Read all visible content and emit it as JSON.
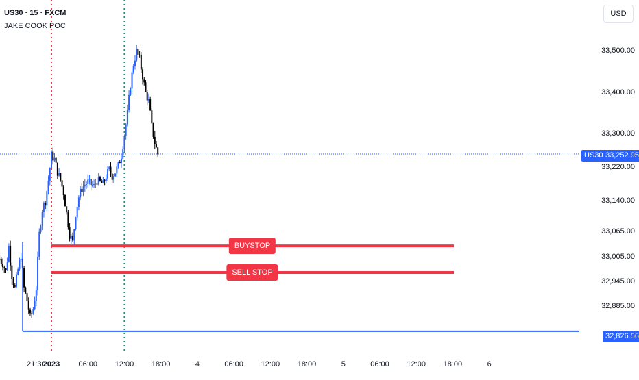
{
  "header": {
    "symbol_line": "US30 · 15 · FXCM",
    "indicator_name": "JAKE COOK POC"
  },
  "currency_label": "USD",
  "price_axis": {
    "labels": [
      "33,500.00",
      "33,400.00",
      "33,300.00",
      "33,220.00",
      "33,140.00",
      "33,065.00",
      "33,005.00",
      "32,945.00",
      "32,885.00"
    ]
  },
  "current_price": {
    "symbol_tag": "US30",
    "value_label": "33,252.95",
    "value": 33252.95,
    "color": "#2962ff"
  },
  "poc_level": {
    "value_label": "32,826.56",
    "value": 32826.56,
    "color": "#2962ff"
  },
  "order_lines": [
    {
      "label": "BUYSTOP",
      "price": 33032,
      "color": "#f23645"
    },
    {
      "label": "SELL STOP",
      "price": 32968,
      "color": "#f23645"
    }
  ],
  "session_markers": [
    {
      "time_hours": 0,
      "color": "#f23645"
    },
    {
      "time_hours": 12,
      "color": "#089981"
    }
  ],
  "time_axis": {
    "labels": [
      {
        "text": "21:30",
        "hours": -2.5,
        "bold": false
      },
      {
        "text": "2023",
        "hours": 0,
        "bold": true
      },
      {
        "text": "06:00",
        "hours": 6,
        "bold": false
      },
      {
        "text": "12:00",
        "hours": 12,
        "bold": false
      },
      {
        "text": "18:00",
        "hours": 18,
        "bold": false
      },
      {
        "text": "4",
        "hours": 24,
        "bold": false
      },
      {
        "text": "06:00",
        "hours": 30,
        "bold": false
      },
      {
        "text": "12:00",
        "hours": 36,
        "bold": false
      },
      {
        "text": "18:00",
        "hours": 42,
        "bold": false
      },
      {
        "text": "5",
        "hours": 48,
        "bold": false
      },
      {
        "text": "06:00",
        "hours": 54,
        "bold": false
      },
      {
        "text": "12:00",
        "hours": 60,
        "bold": false
      },
      {
        "text": "18:00",
        "hours": 66,
        "bold": false
      },
      {
        "text": "6",
        "hours": 72,
        "bold": false
      }
    ]
  },
  "chart_data": {
    "type": "candlestick",
    "interval_minutes": 15,
    "up_color": "#2962ff",
    "down_color": "#000000",
    "close_path": [
      [
        -8.5,
        33000
      ],
      [
        -8.0,
        32990
      ],
      [
        -7.5,
        32970
      ],
      [
        -7.0,
        33030
      ],
      [
        -6.5,
        32960
      ],
      [
        -6.0,
        32930
      ],
      [
        -5.5,
        32975
      ],
      [
        -5.0,
        33010
      ],
      [
        -4.5,
        32930
      ],
      [
        -4.0,
        32900
      ],
      [
        -3.5,
        32860
      ],
      [
        -3.0,
        32880
      ],
      [
        -2.5,
        32930
      ],
      [
        -2.0,
        33060
      ],
      [
        -1.5,
        33120
      ],
      [
        -1.0,
        33140
      ],
      [
        -0.5,
        33190
      ],
      [
        0.0,
        33250
      ],
      [
        0.5,
        33240
      ],
      [
        1.0,
        33210
      ],
      [
        1.5,
        33190
      ],
      [
        2.0,
        33160
      ],
      [
        2.5,
        33110
      ],
      [
        3.0,
        33060
      ],
      [
        3.5,
        33040
      ],
      [
        4.0,
        33110
      ],
      [
        4.5,
        33150
      ],
      [
        5.0,
        33170
      ],
      [
        5.5,
        33180
      ],
      [
        6.0,
        33185
      ],
      [
        6.5,
        33180
      ],
      [
        7.0,
        33175
      ],
      [
        7.5,
        33190
      ],
      [
        8.0,
        33185
      ],
      [
        8.5,
        33180
      ],
      [
        9.0,
        33200
      ],
      [
        9.5,
        33215
      ],
      [
        10.0,
        33200
      ],
      [
        10.5,
        33210
      ],
      [
        11.0,
        33225
      ],
      [
        11.5,
        33250
      ],
      [
        12.0,
        33300
      ],
      [
        12.5,
        33350
      ],
      [
        13.0,
        33420
      ],
      [
        13.5,
        33470
      ],
      [
        14.0,
        33500
      ],
      [
        14.5,
        33480
      ],
      [
        15.0,
        33440
      ],
      [
        15.5,
        33400
      ],
      [
        16.0,
        33380
      ],
      [
        16.5,
        33320
      ],
      [
        17.0,
        33280
      ],
      [
        17.5,
        33252.95
      ]
    ]
  }
}
